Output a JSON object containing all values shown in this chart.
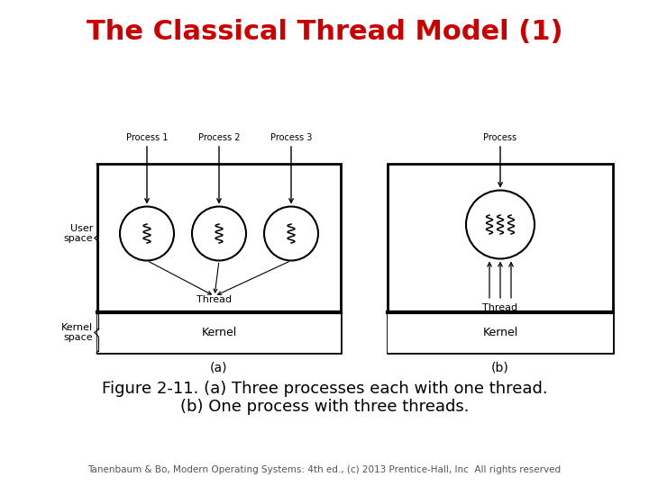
{
  "title": "The Classical Thread Model (1)",
  "title_color": "#cc0000",
  "title_fontsize": 22,
  "caption_line1": "Figure 2-11. (a) Three processes each with one thread.",
  "caption_line2": "(b) One process with three threads.",
  "caption_fontsize": 13,
  "footer": "Tanenbaum & Bo, Modern Operating Systems: 4th ed., (c) 2013 Prentice-Hall, Inc  All rights reserved",
  "footer_fontsize": 7.5,
  "bg_color": "#ffffff",
  "diagram_label_fontsize": 7,
  "kernel_label_fontsize": 9,
  "thread_label_fontsize": 8,
  "side_label_fontsize": 8
}
